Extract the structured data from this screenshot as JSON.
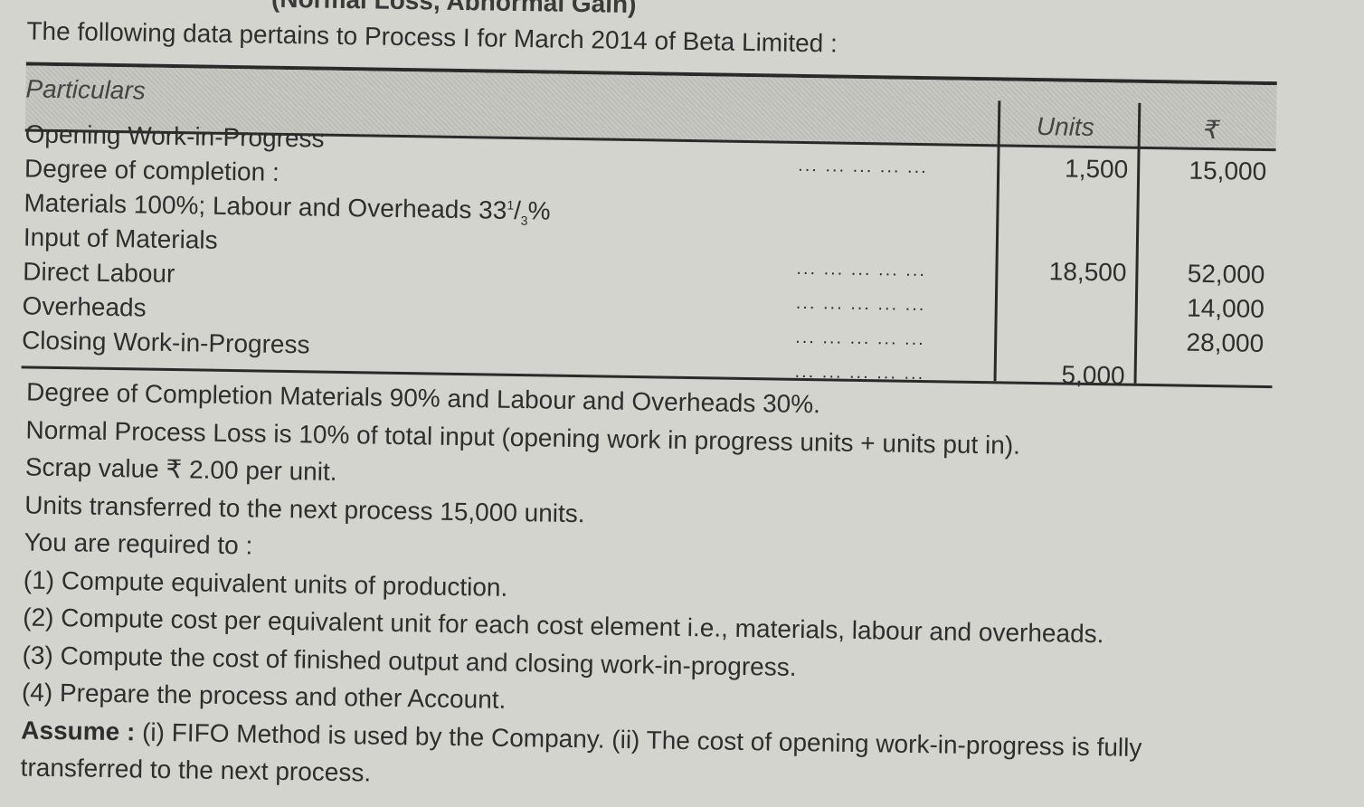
{
  "heading": "(Normal Loss, Abnormal Gain)",
  "intro": "The following data pertains to Process I for March 2014 of Beta Limited :",
  "table": {
    "headers": {
      "particulars": "Particulars",
      "units": "Units",
      "amount": "₹"
    },
    "rows": [
      {
        "label": "Opening Work-in-Progress",
        "dots": "... ... ... ... ...",
        "units": "1,500",
        "amount": "15,000"
      },
      {
        "label": "Degree of completion :",
        "dots": "",
        "units": "",
        "amount": ""
      },
      {
        "label": "Materials 100%; Labour and Overheads 33",
        "frac_num": "1",
        "frac_den": "3",
        "suffix": "%",
        "dots": "",
        "units": "",
        "amount": ""
      },
      {
        "label": "Input of Materials",
        "dots": "... ... ... ... ...",
        "units": "18,500",
        "amount": "52,000"
      },
      {
        "label": "Direct Labour",
        "dots": "... ... ... ... ...",
        "units": "",
        "amount": "14,000"
      },
      {
        "label": "Overheads",
        "dots": "... ... ... ... ...",
        "units": "",
        "amount": "28,000"
      },
      {
        "label": "Closing Work-in-Progress",
        "dots": "... ... ... ... ...",
        "units": "5,000",
        "amount": ""
      }
    ]
  },
  "lines": [
    "Degree of Completion Materials 90% and Labour and Overheads 30%.",
    "Normal Process Loss is 10% of total input (opening work in progress units + units put in).",
    "Scrap value ₹ 2.00 per unit.",
    "Units transferred to the next process 15,000 units.",
    "You are required to :",
    "(1) Compute equivalent units of production.",
    "(2) Compute cost per equivalent unit for each cost element i.e., materials, labour and overheads.",
    "(3) Compute the cost of finished output and closing work-in-progress.",
    "(4) Prepare the process and other Account."
  ],
  "assume": {
    "label": "Assume :",
    "text": " (i) FIFO Method is used by the Company. (ii) The cost of opening work-in-progress is fully",
    "text2": "transferred to the next process."
  }
}
